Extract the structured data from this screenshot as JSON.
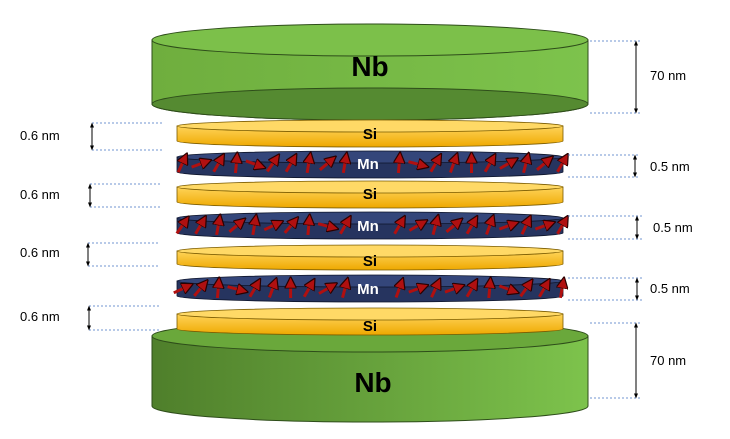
{
  "layers": {
    "nb_top": {
      "label": "Nb",
      "thickness": "70 nm"
    },
    "si_1": {
      "label": "Si",
      "thickness": "0.6 nm"
    },
    "mn_1": {
      "label": "Mn",
      "thickness": "0.5 nm"
    },
    "si_2": {
      "label": "Si",
      "thickness": "0.6 nm"
    },
    "mn_2": {
      "label": "Mn",
      "thickness": "0.5 nm"
    },
    "si_3": {
      "label": "Si",
      "thickness": "0.6 nm"
    },
    "mn_3": {
      "label": "Mn",
      "thickness": "0.5 nm"
    },
    "si_4": {
      "label": "Si",
      "thickness": "0.6 nm"
    },
    "nb_bottom": {
      "label": "Nb",
      "thickness": "70 nm"
    }
  },
  "colors": {
    "nb_light": "#7cc04a",
    "nb_dark": "#4f7f2b",
    "si_fill": "#f5be12",
    "si_top": "#ffd966",
    "mn_fill": "#26345f",
    "arrow": "#b01010",
    "guide": "#4472c4"
  }
}
